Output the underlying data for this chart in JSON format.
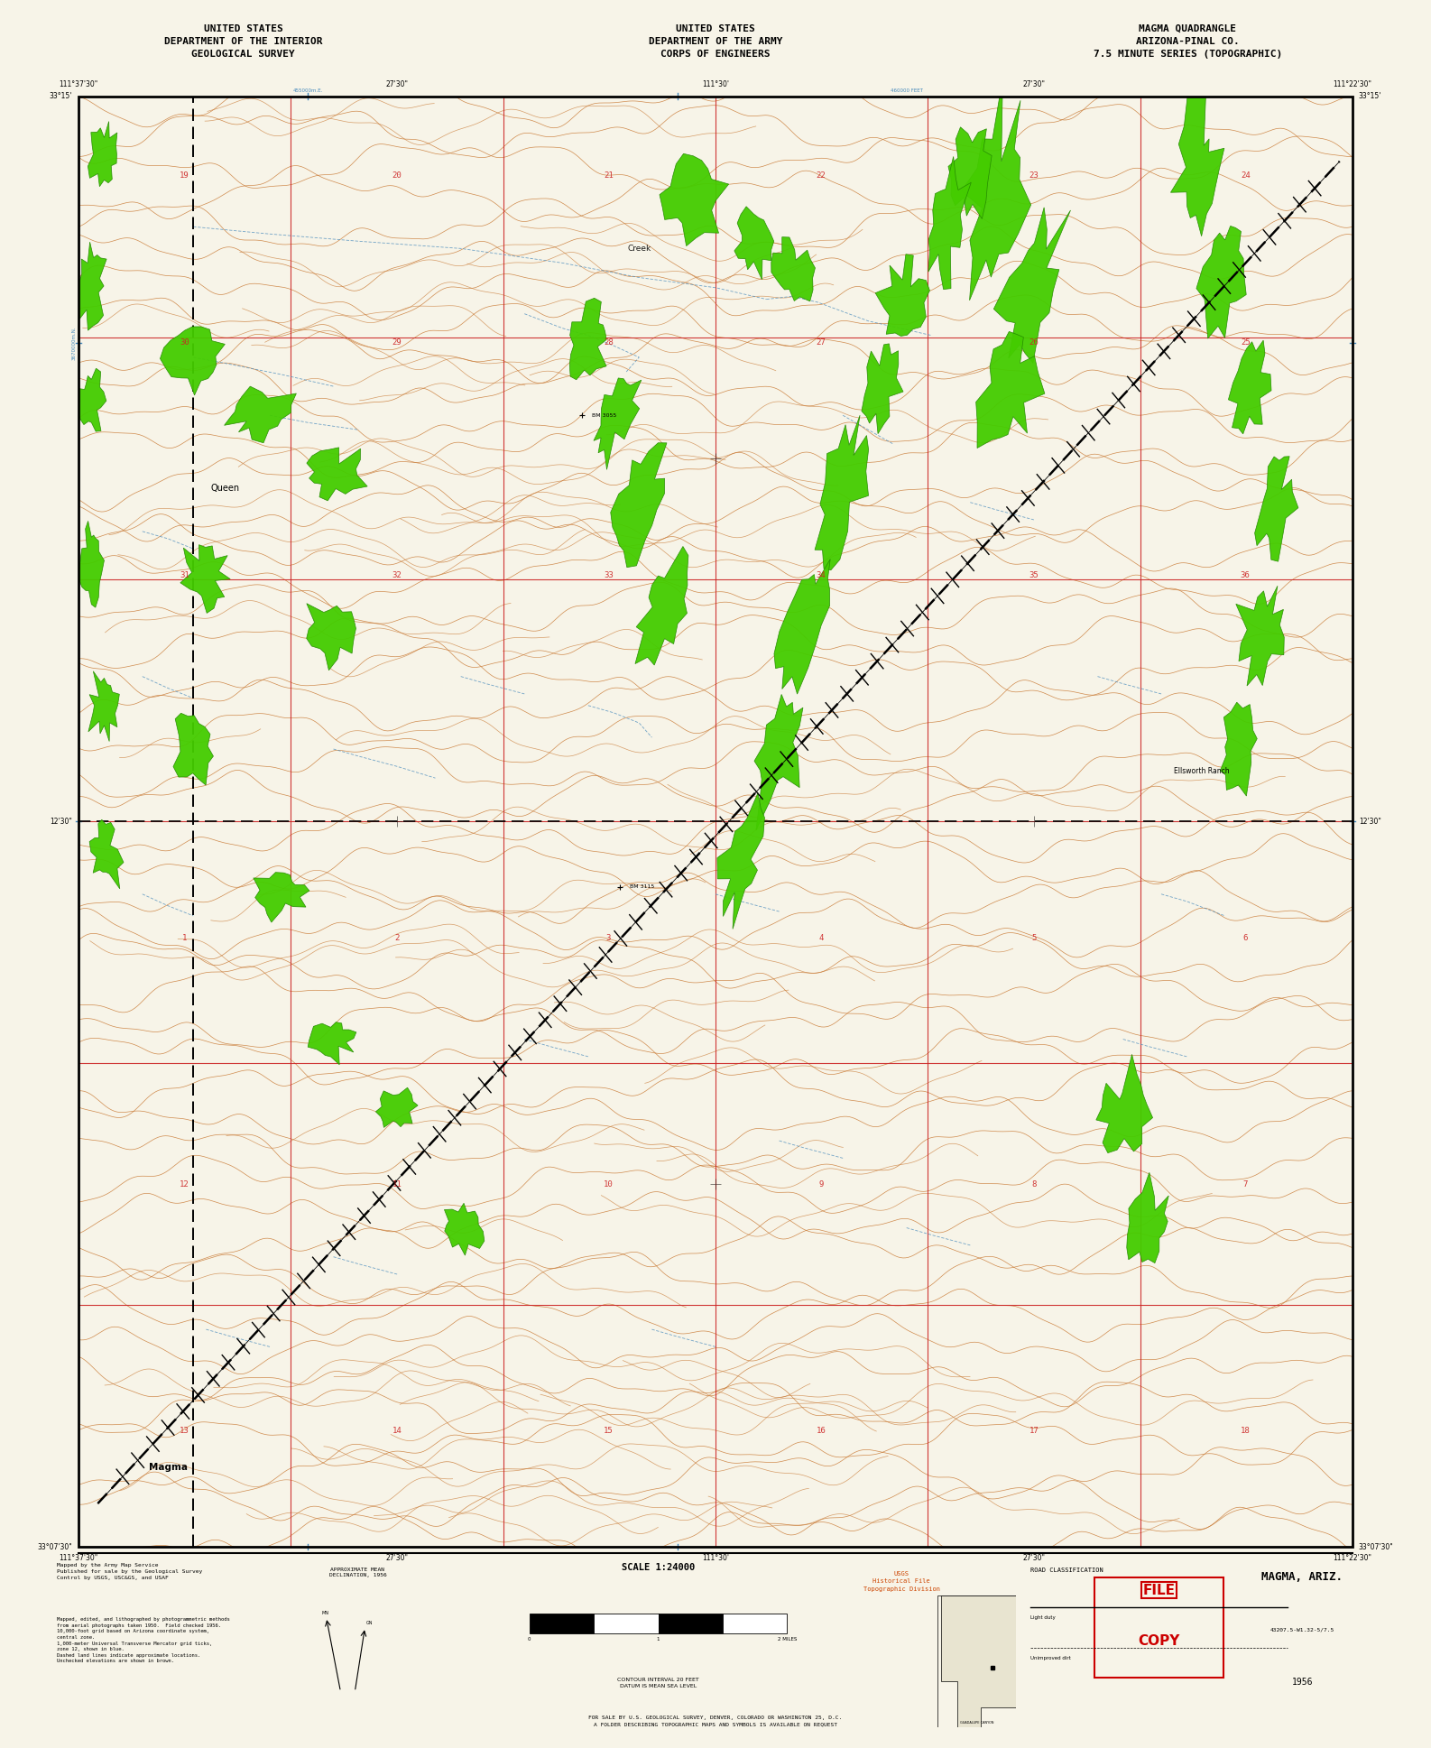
{
  "background_color": "#f7f4e8",
  "map_bg_color": "#f8f5e6",
  "title_left": "UNITED STATES\nDEPARTMENT OF THE INTERIOR\nGEOLOGICAL SURVEY",
  "title_center": "UNITED STATES\nDEPARTMENT OF THE ARMY\nCORPS OF ENGINEERS",
  "title_right": "MAGMA QUADRANGLE\nARIZONA-PINAL CO.\n7.5 MINUTE SERIES (TOPOGRAPHIC)",
  "quadrangle_name": "MAGMA, ARIZ.",
  "quad_number": "43207.5-W1.32-5/7.5",
  "year": "1956",
  "topo_line_color": "#c87832",
  "water_line_color": "#4488bb",
  "section_line_color": "#cc2222",
  "vegetation_color": "#44cc00",
  "vegetation_edge": "#228800",
  "railroad_color": "#333333",
  "boundary_color": "#000000",
  "scale_text": "SCALE 1:24000",
  "contour_interval_text": "CONTOUR INTERVAL 20 FEET\nDATUM IS MEAN SEA LEVEL",
  "sale_text": "FOR SALE BY U.S. GEOLOGICAL SURVEY, DENVER, COLORADO OR WASHINGTON 25, D.C.\nA FOLDER DESCRIBING TOPOGRAPHIC MAPS AND SYMBOLS IS AVAILABLE ON REQUEST",
  "usgs_label": "USGS\nHistorical File\nTopographic Division",
  "file_copy_text": "FILE\nCOPY",
  "place_magma": "Magma",
  "place_queen": "Queen",
  "place_creek": "Creek",
  "place_ellsworth_ranch": "Ellsworth Ranch",
  "mapped_by": "Mapped by the Army Map Service\nPublished for sale by the Geological Survey\nControl by USGS, USC&GS, and USAF",
  "projection_note": "Mapped, edited, and lithographed by photogrammetric methods\nfrom aerial photographs taken 1950.  Field checked 1956.\n10,000-foot grid based on Arizona coordinate system,\ncentral zone.\n1,000-meter Universal Transverse Mercator grid ticks,\nzone 12, shown in blue.\nDashed land lines indicate approximate locations.\nUnchecked elevations are shown in brown.",
  "declination_note": "APPROXIMATE MEAN\nDECLINATION, 1956",
  "road_classification": "ROAD CLASSIFICATION",
  "road_light": "Light duty",
  "road_unimproved": "Unimproved dirt",
  "fig_size": [
    15.86,
    19.37
  ],
  "dpi": 100
}
